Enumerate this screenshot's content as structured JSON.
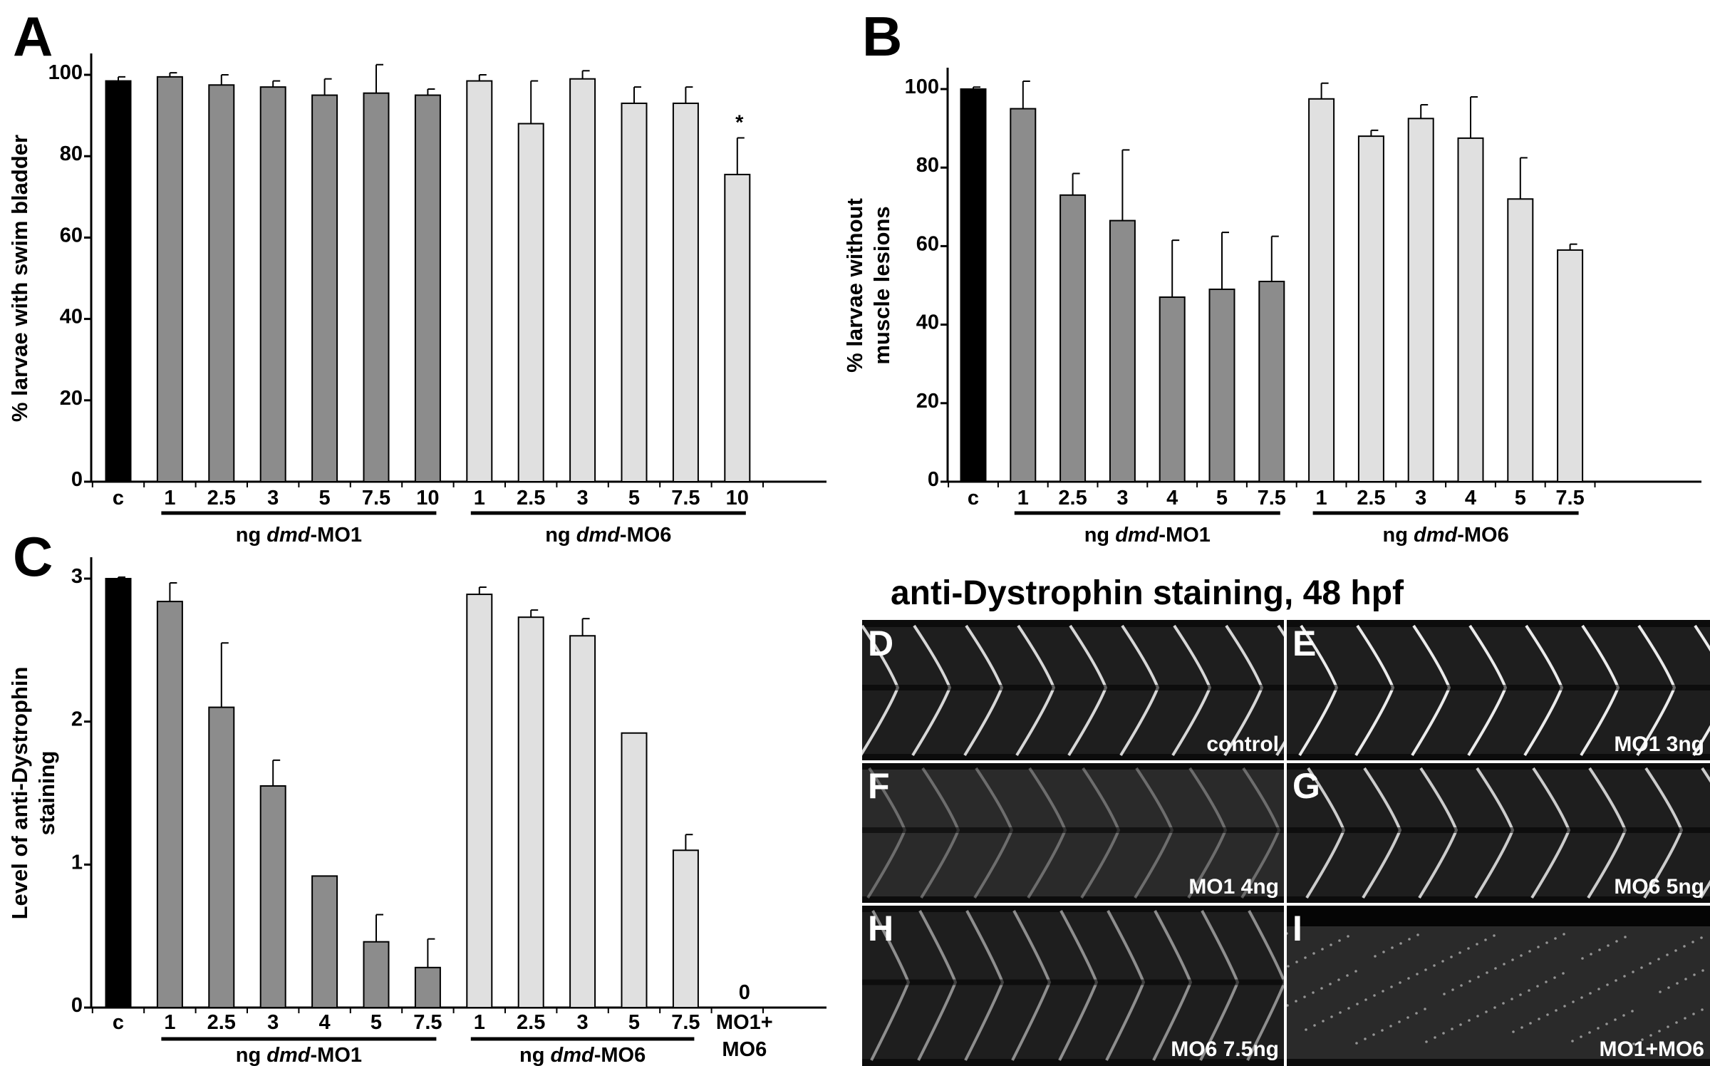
{
  "figure": {
    "panel_letters": [
      "A",
      "B",
      "C"
    ],
    "microscopy": {
      "title": "anti-Dystrophin staining, 48 hpf",
      "images": [
        {
          "letter": "D",
          "label": "control"
        },
        {
          "letter": "E",
          "label": "MO1 3ng"
        },
        {
          "letter": "F",
          "label": "MO1 4ng"
        },
        {
          "letter": "G",
          "label": "MO6 5ng"
        },
        {
          "letter": "H",
          "label": "MO6 7.5ng"
        },
        {
          "letter": "I",
          "label": "MO1+MO6"
        }
      ]
    }
  },
  "colors": {
    "control": "#000000",
    "mo1": "#8c8c8c",
    "mo6": "#e0e0e0",
    "axis": "#000000"
  },
  "chart_data": [
    {
      "panel": "A",
      "type": "bar",
      "ylabel": "% larvae with swim bladder",
      "ylim": [
        0,
        100
      ],
      "yticks": [
        0,
        20,
        40,
        60,
        80,
        100
      ],
      "categories": [
        "c",
        "1",
        "2.5",
        "3",
        "5",
        "7.5",
        "10",
        "1",
        "2.5",
        "3",
        "5",
        "7.5",
        "10"
      ],
      "groups": [
        "control",
        "mo1",
        "mo1",
        "mo1",
        "mo1",
        "mo1",
        "mo1",
        "mo6",
        "mo6",
        "mo6",
        "mo6",
        "mo6",
        "mo6"
      ],
      "values": [
        98.5,
        99.5,
        97.5,
        97,
        95,
        95.5,
        95,
        98.5,
        88,
        99,
        93,
        93,
        75.5
      ],
      "errors": [
        1,
        1,
        2.5,
        1.5,
        4,
        7,
        1.5,
        1.5,
        10.5,
        2,
        4,
        4,
        9
      ],
      "annotations": [
        {
          "category_index": 12,
          "text": "*"
        }
      ],
      "group_labels": [
        {
          "prefix": "ng ",
          "italic": "dmd",
          "suffix": "-MO1",
          "from": 1,
          "to": 6
        },
        {
          "prefix": "ng ",
          "italic": "dmd",
          "suffix": "-MO6",
          "from": 7,
          "to": 12
        }
      ]
    },
    {
      "panel": "B",
      "type": "bar",
      "ylabel": "% larvae without muscle lesions",
      "ylim": [
        0,
        100
      ],
      "yticks": [
        0,
        20,
        40,
        60,
        80,
        100
      ],
      "categories": [
        "c",
        "1",
        "2.5",
        "3",
        "4",
        "5",
        "7.5",
        "1",
        "2.5",
        "3",
        "4",
        "5",
        "7.5"
      ],
      "groups": [
        "control",
        "mo1",
        "mo1",
        "mo1",
        "mo1",
        "mo1",
        "mo1",
        "mo6",
        "mo6",
        "mo6",
        "mo6",
        "mo6",
        "mo6"
      ],
      "values": [
        100,
        95,
        73,
        66.5,
        47,
        49,
        51,
        97.5,
        88,
        92.5,
        87.5,
        72,
        59
      ],
      "errors": [
        0.5,
        7,
        5.5,
        18,
        14.5,
        14.5,
        11.5,
        4,
        1.5,
        3.5,
        10.5,
        10.5,
        1.5
      ],
      "group_labels": [
        {
          "prefix": "ng ",
          "italic": "dmd",
          "suffix": "-MO1",
          "from": 1,
          "to": 6
        },
        {
          "prefix": "ng ",
          "italic": "dmd",
          "suffix": "-MO6",
          "from": 7,
          "to": 12
        }
      ]
    },
    {
      "panel": "C",
      "type": "bar",
      "ylabel": "Level of anti-Dystrophin staining",
      "ylim": [
        0,
        3
      ],
      "yticks": [
        0,
        1,
        2,
        3
      ],
      "categories": [
        "c",
        "1",
        "2.5",
        "3",
        "4",
        "5",
        "7.5",
        "1",
        "2.5",
        "3",
        "5",
        "7.5",
        "MO1+MO6"
      ],
      "groups": [
        "control",
        "mo1",
        "mo1",
        "mo1",
        "mo1",
        "mo1",
        "mo1",
        "mo6",
        "mo6",
        "mo6",
        "mo6",
        "mo6",
        "combo"
      ],
      "values": [
        3,
        2.84,
        2.1,
        1.55,
        0.92,
        0.46,
        0.28,
        2.89,
        2.73,
        2.6,
        1.92,
        1.1,
        0
      ],
      "errors": [
        0.01,
        0.13,
        0.45,
        0.18,
        0,
        0.19,
        0.2,
        0.05,
        0.05,
        0.12,
        0,
        0.11,
        0
      ],
      "annotations": [
        {
          "category_index": 12,
          "text": "0"
        }
      ],
      "group_labels": [
        {
          "prefix": "ng ",
          "italic": "dmd",
          "suffix": "-MO1",
          "from": 1,
          "to": 6
        },
        {
          "prefix": "ng ",
          "italic": "dmd",
          "suffix": "-MO6",
          "from": 7,
          "to": 11
        }
      ]
    }
  ]
}
